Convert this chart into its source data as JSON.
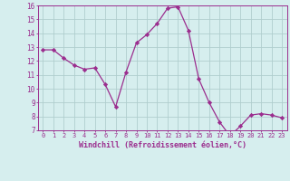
{
  "x": [
    0,
    1,
    2,
    3,
    4,
    5,
    6,
    7,
    8,
    9,
    10,
    11,
    12,
    13,
    14,
    15,
    16,
    17,
    18,
    19,
    20,
    21,
    22,
    23
  ],
  "y": [
    12.8,
    12.8,
    12.2,
    11.7,
    11.4,
    11.5,
    10.3,
    8.7,
    11.2,
    13.3,
    13.9,
    14.7,
    15.8,
    15.9,
    14.2,
    10.7,
    9.0,
    7.6,
    6.6,
    7.3,
    8.1,
    8.2,
    8.1,
    7.9
  ],
  "line_color": "#9b2d8e",
  "marker": "D",
  "marker_size": 2.2,
  "bg_color": "#d6eeee",
  "grid_color": "#b0cece",
  "xlabel": "Windchill (Refroidissement éolien,°C)",
  "xlabel_color": "#9b2d8e",
  "tick_color": "#9b2d8e",
  "ylim": [
    7,
    16
  ],
  "xlim": [
    -0.5,
    23.5
  ],
  "yticks": [
    7,
    8,
    9,
    10,
    11,
    12,
    13,
    14,
    15,
    16
  ],
  "xticks": [
    0,
    1,
    2,
    3,
    4,
    5,
    6,
    7,
    8,
    9,
    10,
    11,
    12,
    13,
    14,
    15,
    16,
    17,
    18,
    19,
    20,
    21,
    22,
    23
  ]
}
